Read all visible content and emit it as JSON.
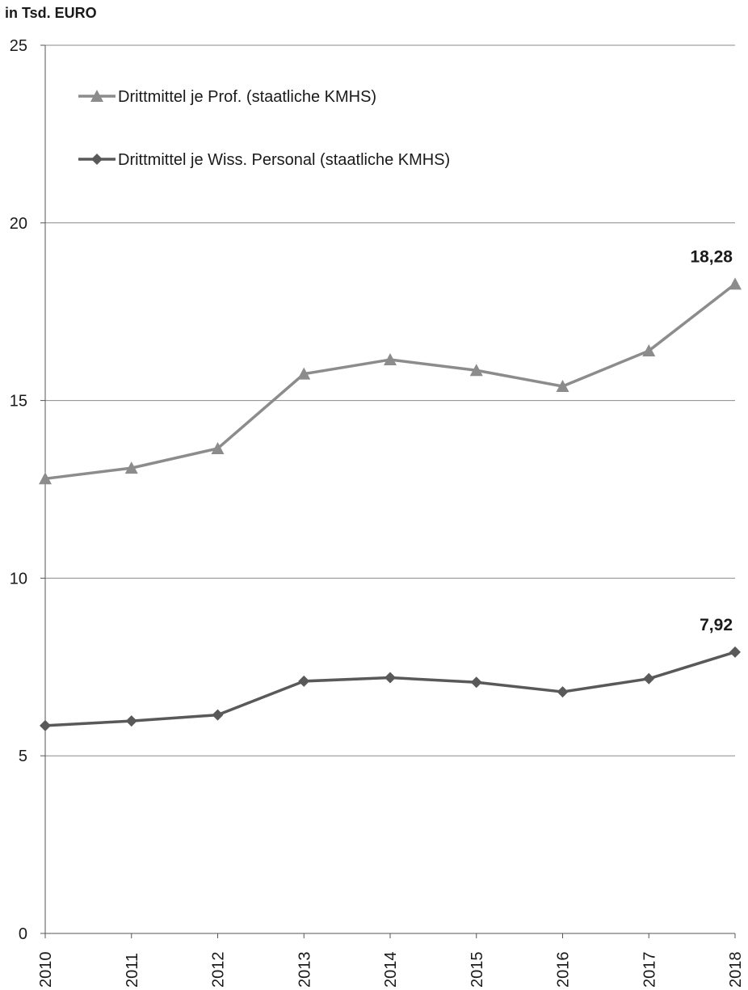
{
  "chart_data": {
    "type": "line",
    "ylabel": "in Tsd. EURO",
    "ylim": [
      0,
      25
    ],
    "yticks": [
      "0",
      "5",
      "10",
      "15",
      "20",
      "25"
    ],
    "categories": [
      "2010",
      "2011",
      "2012",
      "2013",
      "2014",
      "2015",
      "2016",
      "2017",
      "2018"
    ],
    "grid": true,
    "legend_position": "top-left",
    "series": [
      {
        "name": "Drittmittel je Prof. (staatliche KMHS)",
        "marker": "triangle",
        "color": "#8c8c8c",
        "values": [
          12.8,
          13.1,
          13.65,
          15.75,
          16.15,
          15.85,
          15.4,
          16.4,
          18.28
        ],
        "end_label": "18,28"
      },
      {
        "name": "Drittmittel je Wiss. Personal (staatliche KMHS)",
        "marker": "diamond",
        "color": "#595959",
        "values": [
          5.85,
          5.98,
          6.15,
          7.1,
          7.2,
          7.07,
          6.8,
          7.17,
          7.92
        ],
        "end_label": "7,92"
      }
    ]
  }
}
